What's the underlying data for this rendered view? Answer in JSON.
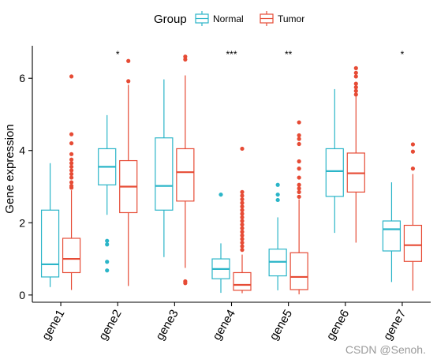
{
  "watermark": "CSDN @Senoh.",
  "chart_data": {
    "type": "boxplot",
    "title": "",
    "xlabel": "",
    "ylabel": "Gene expression",
    "ylim": [
      -0.2,
      6.9
    ],
    "yticks": [
      0,
      2,
      4,
      6
    ],
    "grid": false,
    "legend": {
      "title": "Group",
      "position": "top",
      "entries": [
        {
          "name": "Normal",
          "color": "#2bb5c8"
        },
        {
          "name": "Tumor",
          "color": "#e64b35"
        }
      ]
    },
    "categories": [
      "gene1",
      "gene2",
      "gene3",
      "gene4",
      "gene5",
      "gene6",
      "gene7"
    ],
    "significance": [
      "",
      "*",
      "",
      "***",
      "**",
      "",
      "*"
    ],
    "significance_y": 6.7,
    "series": [
      {
        "name": "Normal",
        "color": "#2bb5c8",
        "boxes": [
          {
            "min": 0.22,
            "q1": 0.5,
            "median": 0.85,
            "q3": 2.35,
            "max": 3.65,
            "outliers": []
          },
          {
            "min": 2.22,
            "q1": 3.05,
            "median": 3.55,
            "q3": 4.05,
            "max": 4.98,
            "outliers": [
              1.5,
              1.4,
              0.92,
              0.68
            ]
          },
          {
            "min": 1.05,
            "q1": 2.35,
            "median": 3.02,
            "q3": 4.35,
            "max": 5.97,
            "outliers": []
          },
          {
            "min": 0.06,
            "q1": 0.45,
            "median": 0.72,
            "q3": 1.0,
            "max": 1.43,
            "outliers": [
              2.78
            ]
          },
          {
            "min": 0.13,
            "q1": 0.53,
            "median": 0.92,
            "q3": 1.27,
            "max": 2.15,
            "outliers": [
              3.05,
              2.78,
              2.63
            ]
          },
          {
            "min": 1.72,
            "q1": 2.73,
            "median": 3.43,
            "q3": 4.05,
            "max": 5.7,
            "outliers": []
          },
          {
            "min": 0.36,
            "q1": 1.22,
            "median": 1.82,
            "q3": 2.05,
            "max": 3.12,
            "outliers": []
          }
        ]
      },
      {
        "name": "Tumor",
        "color": "#e64b35",
        "boxes": [
          {
            "min": 0.14,
            "q1": 0.62,
            "median": 1.0,
            "q3": 1.57,
            "max": 2.9,
            "outliers": [
              6.05,
              4.45,
              4.2,
              3.9,
              3.75,
              3.65,
              3.55,
              3.45,
              3.35,
              3.25,
              3.12,
              3.02,
              2.97
            ]
          },
          {
            "min": 0.25,
            "q1": 2.28,
            "median": 3.0,
            "q3": 3.72,
            "max": 5.82,
            "outliers": [
              6.48,
              5.92
            ]
          },
          {
            "min": 0.75,
            "q1": 2.6,
            "median": 3.4,
            "q3": 4.05,
            "max": 6.08,
            "outliers": [
              6.6,
              6.52,
              0.38,
              0.33
            ]
          },
          {
            "min": 0.05,
            "q1": 0.13,
            "median": 0.28,
            "q3": 0.62,
            "max": 1.12,
            "outliers": [
              4.05,
              2.85,
              2.75,
              2.65,
              2.55,
              2.45,
              2.35,
              2.25,
              2.15,
              2.05,
              1.95,
              1.85,
              1.75,
              1.65,
              1.55,
              1.45,
              1.35,
              1.25
            ]
          },
          {
            "min": 0.02,
            "q1": 0.15,
            "median": 0.5,
            "q3": 1.17,
            "max": 2.65,
            "outliers": [
              4.78,
              4.42,
              4.32,
              4.18,
              3.7,
              3.5,
              3.25,
              3.05,
              2.95,
              2.85,
              2.72
            ]
          },
          {
            "min": 1.45,
            "q1": 2.85,
            "median": 3.37,
            "q3": 3.93,
            "max": 5.5,
            "outliers": [
              6.28,
              6.15,
              6.05,
              5.85,
              5.75,
              5.65,
              5.55
            ]
          },
          {
            "min": 0.12,
            "q1": 0.93,
            "median": 1.38,
            "q3": 1.93,
            "max": 3.35,
            "outliers": [
              4.17,
              3.97,
              3.5
            ]
          }
        ]
      }
    ]
  }
}
